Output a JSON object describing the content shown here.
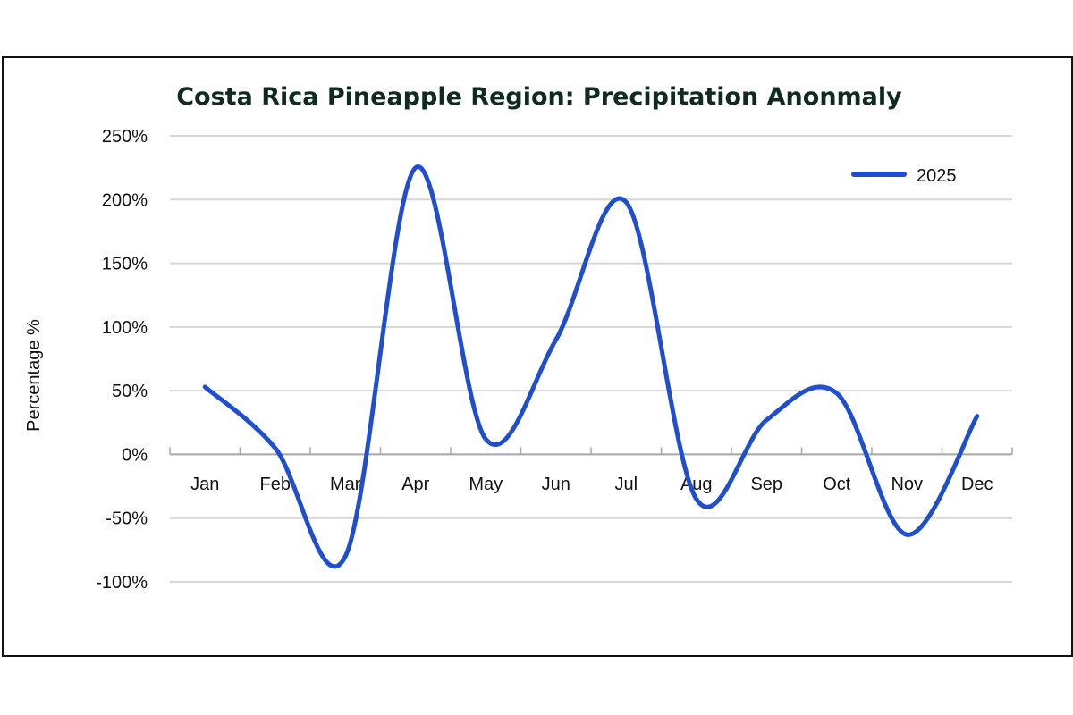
{
  "chart_data": {
    "type": "line",
    "title": "Costa Rica Pineapple Region: Precipitation Anonmaly",
    "xlabel": "",
    "ylabel": "Percentage %",
    "categories": [
      "Jan",
      "Feb",
      "Mar",
      "Apr",
      "May",
      "Jun",
      "Jul",
      "Aug",
      "Sep",
      "Oct",
      "Nov",
      "Dec"
    ],
    "series": [
      {
        "name": "2025",
        "color": "#1f4fcf",
        "values": [
          53,
          5,
          -80,
          225,
          12,
          90,
          198,
          -35,
          27,
          48,
          -63,
          30
        ]
      }
    ],
    "ylim": [
      -100,
      250
    ],
    "yticks": [
      250,
      200,
      150,
      100,
      50,
      0,
      -50,
      -100
    ],
    "ytick_labels": [
      "250%",
      "200%",
      "150%",
      "100%",
      "50%",
      "0%",
      "-50%",
      "-100%"
    ],
    "grid": true,
    "smooth": true,
    "legend": "top-right"
  }
}
